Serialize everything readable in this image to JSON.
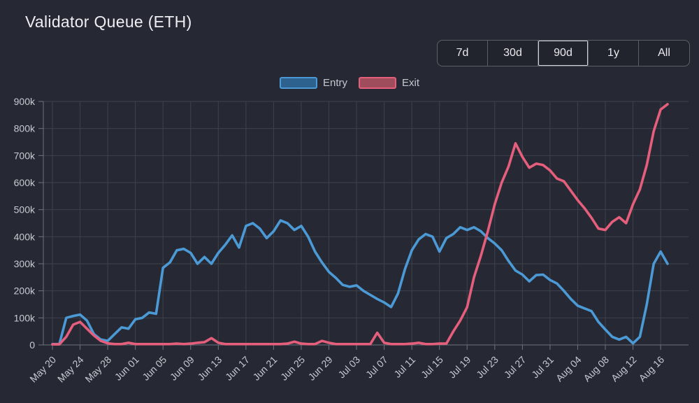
{
  "header": {
    "title": "Validator Queue (ETH)"
  },
  "range_buttons": {
    "selected": "90d",
    "items": [
      {
        "label": "7d"
      },
      {
        "label": "30d"
      },
      {
        "label": "90d"
      },
      {
        "label": "1y"
      },
      {
        "label": "All"
      }
    ]
  },
  "legend": {
    "entry_label": "Entry",
    "exit_label": "Exit"
  },
  "colors": {
    "background": "#262933",
    "grid": "#3d424b",
    "axis": "#6e747e",
    "tick_text": "#c6cad2",
    "title_text": "#edeef2",
    "entry_line": "#4b9ad6",
    "entry_swatch_fill": "#2d628f",
    "exit_line": "#e55f7d",
    "exit_swatch_fill": "#9f4d5d"
  },
  "chart_data": {
    "type": "line",
    "title": "Validator Queue (ETH)",
    "xlabel": "",
    "ylabel": "",
    "values_unit": "thousand ETH (k)",
    "ylim": [
      0,
      900
    ],
    "ytick_values": [
      0,
      100,
      200,
      300,
      400,
      500,
      600,
      700,
      800,
      900
    ],
    "ytick_labels": [
      "0",
      "100k",
      "200k",
      "300k",
      "400k",
      "500k",
      "600k",
      "700k",
      "800k",
      "900k"
    ],
    "xtick_every_days": 4,
    "xtick_labels": [
      "May 20",
      "May 24",
      "May 28",
      "Jun 01",
      "Jun 05",
      "Jun 09",
      "Jun 13",
      "Jun 17",
      "Jun 21",
      "Jun 25",
      "Jun 29",
      "Jul 03",
      "Jul 07",
      "Jul 11",
      "Jul 15",
      "Jul 19",
      "Jul 23",
      "Jul 27",
      "Jul 31",
      "Aug 04",
      "Aug 08",
      "Aug 12",
      "Aug 16"
    ],
    "x": [
      "May 20",
      "May 21",
      "May 22",
      "May 23",
      "May 24",
      "May 25",
      "May 26",
      "May 27",
      "May 28",
      "May 29",
      "May 30",
      "May 31",
      "Jun 01",
      "Jun 02",
      "Jun 03",
      "Jun 04",
      "Jun 05",
      "Jun 06",
      "Jun 07",
      "Jun 08",
      "Jun 09",
      "Jun 10",
      "Jun 11",
      "Jun 12",
      "Jun 13",
      "Jun 14",
      "Jun 15",
      "Jun 16",
      "Jun 17",
      "Jun 18",
      "Jun 19",
      "Jun 20",
      "Jun 21",
      "Jun 22",
      "Jun 23",
      "Jun 24",
      "Jun 25",
      "Jun 26",
      "Jun 27",
      "Jun 28",
      "Jun 29",
      "Jun 30",
      "Jul 01",
      "Jul 02",
      "Jul 03",
      "Jul 04",
      "Jul 05",
      "Jul 06",
      "Jul 07",
      "Jul 08",
      "Jul 09",
      "Jul 10",
      "Jul 11",
      "Jul 12",
      "Jul 13",
      "Jul 14",
      "Jul 15",
      "Jul 16",
      "Jul 17",
      "Jul 18",
      "Jul 19",
      "Jul 20",
      "Jul 21",
      "Jul 22",
      "Jul 23",
      "Jul 24",
      "Jul 25",
      "Jul 26",
      "Jul 27",
      "Jul 28",
      "Jul 29",
      "Jul 30",
      "Jul 31",
      "Aug 01",
      "Aug 02",
      "Aug 03",
      "Aug 04",
      "Aug 05",
      "Aug 06",
      "Aug 07",
      "Aug 08",
      "Aug 09",
      "Aug 10",
      "Aug 11",
      "Aug 12",
      "Aug 13",
      "Aug 14",
      "Aug 15",
      "Aug 16",
      "Aug 17"
    ],
    "series": [
      {
        "name": "Entry",
        "color": "#4b9ad6",
        "values": [
          3,
          3,
          100,
          107,
          112,
          90,
          40,
          20,
          15,
          40,
          65,
          60,
          95,
          100,
          120,
          115,
          285,
          305,
          350,
          355,
          340,
          300,
          325,
          300,
          340,
          370,
          405,
          360,
          440,
          450,
          430,
          395,
          420,
          460,
          450,
          425,
          440,
          400,
          345,
          305,
          270,
          248,
          222,
          215,
          220,
          200,
          185,
          170,
          157,
          140,
          190,
          280,
          350,
          390,
          410,
          400,
          345,
          395,
          410,
          435,
          425,
          435,
          420,
          395,
          375,
          350,
          310,
          275,
          260,
          235,
          258,
          260,
          240,
          227,
          200,
          170,
          145,
          135,
          125,
          85,
          57,
          30,
          20,
          30,
          6,
          30,
          150,
          300,
          345,
          300
        ]
      },
      {
        "name": "Exit",
        "color": "#e55f7d",
        "values": [
          2,
          2,
          30,
          75,
          85,
          60,
          35,
          15,
          6,
          3,
          3,
          8,
          3,
          3,
          3,
          3,
          3,
          3,
          5,
          3,
          5,
          8,
          10,
          25,
          8,
          3,
          3,
          3,
          3,
          3,
          3,
          3,
          3,
          3,
          5,
          12,
          5,
          3,
          3,
          15,
          8,
          3,
          3,
          3,
          3,
          3,
          3,
          45,
          8,
          3,
          3,
          3,
          5,
          8,
          3,
          3,
          5,
          5,
          50,
          90,
          140,
          250,
          330,
          420,
          520,
          600,
          660,
          745,
          695,
          655,
          670,
          665,
          645,
          615,
          605,
          570,
          535,
          505,
          470,
          430,
          425,
          455,
          472,
          450,
          520,
          575,
          665,
          790,
          870,
          890
        ]
      }
    ],
    "grid": true,
    "legend_position": "top-center"
  }
}
